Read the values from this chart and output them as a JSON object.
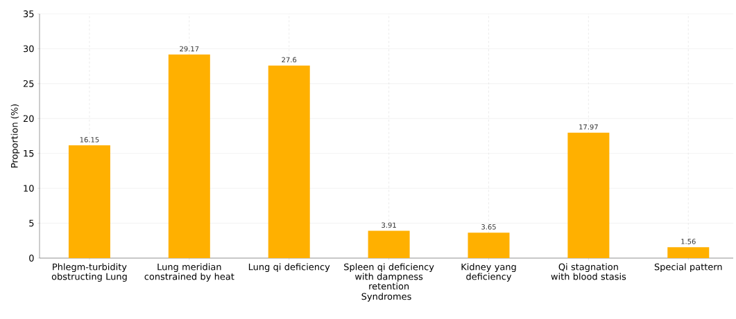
{
  "chart_data": {
    "type": "bar",
    "xlabel": "Syndromes",
    "ylabel": "Proportion (%)",
    "categories": [
      "Phlegm-turbidity obstructing Lung",
      "Lung meridian constrained by heat",
      "Lung qi deficiency",
      "Spleen qi deficiency with dampness retention",
      "Kidney yang deficiency",
      "Qi stagnation with blood stasis",
      "Special pattern"
    ],
    "values": [
      16.15,
      29.17,
      27.6,
      3.91,
      3.65,
      17.97,
      1.56
    ],
    "color": "#ffb000",
    "ylim": [
      0,
      35
    ],
    "yticks": [
      0,
      5,
      10,
      15,
      20,
      25,
      30,
      35
    ],
    "grid": true,
    "data_labels": true
  }
}
